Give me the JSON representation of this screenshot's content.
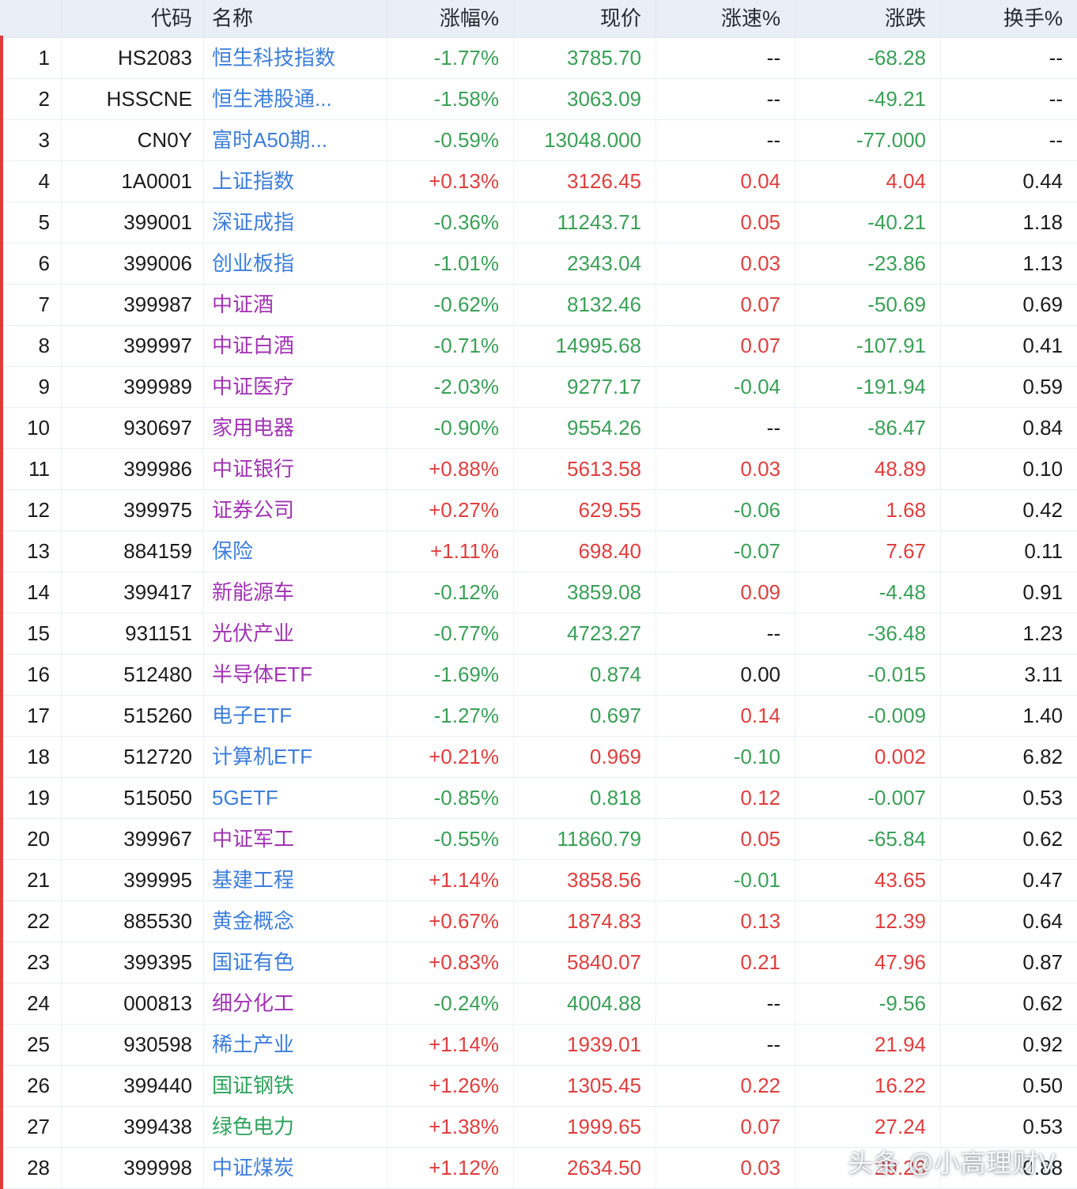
{
  "colors": {
    "up": "#e03e3e",
    "down": "#3aa057",
    "blue": "#3d7edb",
    "purple": "#a234b4",
    "green": "#2fa35c",
    "accent": "#e03c3c",
    "header_bg": "#e9eef7"
  },
  "watermark": "头条 @小高理财V",
  "table": {
    "columns": [
      {
        "key": "idx",
        "header": ""
      },
      {
        "key": "code",
        "header": "代码"
      },
      {
        "key": "name",
        "header": "名称"
      },
      {
        "key": "pct",
        "header": "涨幅%"
      },
      {
        "key": "price",
        "header": "现价"
      },
      {
        "key": "spd",
        "header": "涨速%"
      },
      {
        "key": "chg",
        "header": "涨跌"
      },
      {
        "key": "to",
        "header": "换手%"
      }
    ],
    "rows": [
      {
        "idx": "1",
        "code": "HS2083",
        "name": "恒生科技指数",
        "name_c": "blue",
        "pct": "-1.77%",
        "pct_c": "dn",
        "price": "3785.70",
        "price_c": "dn",
        "spd": "--",
        "spd_c": "flat",
        "chg": "-68.28",
        "chg_c": "dn",
        "to": "--",
        "to_c": "flat"
      },
      {
        "idx": "2",
        "code": "HSSCNE",
        "name": "恒生港股通...",
        "name_c": "blue",
        "pct": "-1.58%",
        "pct_c": "dn",
        "price": "3063.09",
        "price_c": "dn",
        "spd": "--",
        "spd_c": "flat",
        "chg": "-49.21",
        "chg_c": "dn",
        "to": "--",
        "to_c": "flat"
      },
      {
        "idx": "3",
        "code": "CN0Y",
        "name": "富时A50期...",
        "name_c": "blue",
        "pct": "-0.59%",
        "pct_c": "dn",
        "price": "13048.000",
        "price_c": "dn",
        "spd": "--",
        "spd_c": "flat",
        "chg": "-77.000",
        "chg_c": "dn",
        "to": "--",
        "to_c": "flat"
      },
      {
        "idx": "4",
        "code": "1A0001",
        "name": "上证指数",
        "name_c": "blue",
        "pct": "+0.13%",
        "pct_c": "up",
        "price": "3126.45",
        "price_c": "up",
        "spd": "0.04",
        "spd_c": "up",
        "chg": "4.04",
        "chg_c": "up",
        "to": "0.44",
        "to_c": "flat"
      },
      {
        "idx": "5",
        "code": "399001",
        "name": "深证成指",
        "name_c": "blue",
        "pct": "-0.36%",
        "pct_c": "dn",
        "price": "11243.71",
        "price_c": "dn",
        "spd": "0.05",
        "spd_c": "up",
        "chg": "-40.21",
        "chg_c": "dn",
        "to": "1.18",
        "to_c": "flat"
      },
      {
        "idx": "6",
        "code": "399006",
        "name": "创业板指",
        "name_c": "blue",
        "pct": "-1.01%",
        "pct_c": "dn",
        "price": "2343.04",
        "price_c": "dn",
        "spd": "0.03",
        "spd_c": "up",
        "chg": "-23.86",
        "chg_c": "dn",
        "to": "1.13",
        "to_c": "flat"
      },
      {
        "idx": "7",
        "code": "399987",
        "name": "中证酒",
        "name_c": "purple",
        "pct": "-0.62%",
        "pct_c": "dn",
        "price": "8132.46",
        "price_c": "dn",
        "spd": "0.07",
        "spd_c": "up",
        "chg": "-50.69",
        "chg_c": "dn",
        "to": "0.69",
        "to_c": "flat"
      },
      {
        "idx": "8",
        "code": "399997",
        "name": "中证白酒",
        "name_c": "purple",
        "pct": "-0.71%",
        "pct_c": "dn",
        "price": "14995.68",
        "price_c": "dn",
        "spd": "0.07",
        "spd_c": "up",
        "chg": "-107.91",
        "chg_c": "dn",
        "to": "0.41",
        "to_c": "flat"
      },
      {
        "idx": "9",
        "code": "399989",
        "name": "中证医疗",
        "name_c": "purple",
        "pct": "-2.03%",
        "pct_c": "dn",
        "price": "9277.17",
        "price_c": "dn",
        "spd": "-0.04",
        "spd_c": "dn",
        "chg": "-191.94",
        "chg_c": "dn",
        "to": "0.59",
        "to_c": "flat"
      },
      {
        "idx": "10",
        "code": "930697",
        "name": "家用电器",
        "name_c": "purple",
        "pct": "-0.90%",
        "pct_c": "dn",
        "price": "9554.26",
        "price_c": "dn",
        "spd": "--",
        "spd_c": "flat",
        "chg": "-86.47",
        "chg_c": "dn",
        "to": "0.84",
        "to_c": "flat"
      },
      {
        "idx": "11",
        "code": "399986",
        "name": "中证银行",
        "name_c": "purple",
        "pct": "+0.88%",
        "pct_c": "up",
        "price": "5613.58",
        "price_c": "up",
        "spd": "0.03",
        "spd_c": "up",
        "chg": "48.89",
        "chg_c": "up",
        "to": "0.10",
        "to_c": "flat"
      },
      {
        "idx": "12",
        "code": "399975",
        "name": "证券公司",
        "name_c": "purple",
        "pct": "+0.27%",
        "pct_c": "up",
        "price": "629.55",
        "price_c": "up",
        "spd": "-0.06",
        "spd_c": "dn",
        "chg": "1.68",
        "chg_c": "up",
        "to": "0.42",
        "to_c": "flat"
      },
      {
        "idx": "13",
        "code": "884159",
        "name": "保险",
        "name_c": "blue",
        "pct": "+1.11%",
        "pct_c": "up",
        "price": "698.40",
        "price_c": "up",
        "spd": "-0.07",
        "spd_c": "dn",
        "chg": "7.67",
        "chg_c": "up",
        "to": "0.11",
        "to_c": "flat"
      },
      {
        "idx": "14",
        "code": "399417",
        "name": "新能源车",
        "name_c": "purple",
        "pct": "-0.12%",
        "pct_c": "dn",
        "price": "3859.08",
        "price_c": "dn",
        "spd": "0.09",
        "spd_c": "up",
        "chg": "-4.48",
        "chg_c": "dn",
        "to": "0.91",
        "to_c": "flat"
      },
      {
        "idx": "15",
        "code": "931151",
        "name": "光伏产业",
        "name_c": "purple",
        "pct": "-0.77%",
        "pct_c": "dn",
        "price": "4723.27",
        "price_c": "dn",
        "spd": "--",
        "spd_c": "flat",
        "chg": "-36.48",
        "chg_c": "dn",
        "to": "1.23",
        "to_c": "flat"
      },
      {
        "idx": "16",
        "code": "512480",
        "name": "半导体ETF",
        "name_c": "purple",
        "pct": "-1.69%",
        "pct_c": "dn",
        "price": "0.874",
        "price_c": "dn",
        "spd": "0.00",
        "spd_c": "flat",
        "chg": "-0.015",
        "chg_c": "dn",
        "to": "3.11",
        "to_c": "flat"
      },
      {
        "idx": "17",
        "code": "515260",
        "name": "电子ETF",
        "name_c": "blue",
        "pct": "-1.27%",
        "pct_c": "dn",
        "price": "0.697",
        "price_c": "dn",
        "spd": "0.14",
        "spd_c": "up",
        "chg": "-0.009",
        "chg_c": "dn",
        "to": "1.40",
        "to_c": "flat"
      },
      {
        "idx": "18",
        "code": "512720",
        "name": "计算机ETF",
        "name_c": "blue",
        "pct": "+0.21%",
        "pct_c": "up",
        "price": "0.969",
        "price_c": "up",
        "spd": "-0.10",
        "spd_c": "dn",
        "chg": "0.002",
        "chg_c": "up",
        "to": "6.82",
        "to_c": "flat"
      },
      {
        "idx": "19",
        "code": "515050",
        "name": "5GETF",
        "name_c": "blue",
        "pct": "-0.85%",
        "pct_c": "dn",
        "price": "0.818",
        "price_c": "dn",
        "spd": "0.12",
        "spd_c": "up",
        "chg": "-0.007",
        "chg_c": "dn",
        "to": "0.53",
        "to_c": "flat"
      },
      {
        "idx": "20",
        "code": "399967",
        "name": "中证军工",
        "name_c": "purple",
        "pct": "-0.55%",
        "pct_c": "dn",
        "price": "11860.79",
        "price_c": "dn",
        "spd": "0.05",
        "spd_c": "up",
        "chg": "-65.84",
        "chg_c": "dn",
        "to": "0.62",
        "to_c": "flat"
      },
      {
        "idx": "21",
        "code": "399995",
        "name": "基建工程",
        "name_c": "blue",
        "pct": "+1.14%",
        "pct_c": "up",
        "price": "3858.56",
        "price_c": "up",
        "spd": "-0.01",
        "spd_c": "dn",
        "chg": "43.65",
        "chg_c": "up",
        "to": "0.47",
        "to_c": "flat"
      },
      {
        "idx": "22",
        "code": "885530",
        "name": "黄金概念",
        "name_c": "blue",
        "pct": "+0.67%",
        "pct_c": "up",
        "price": "1874.83",
        "price_c": "up",
        "spd": "0.13",
        "spd_c": "up",
        "chg": "12.39",
        "chg_c": "up",
        "to": "0.64",
        "to_c": "flat"
      },
      {
        "idx": "23",
        "code": "399395",
        "name": "国证有色",
        "name_c": "blue",
        "pct": "+0.83%",
        "pct_c": "up",
        "price": "5840.07",
        "price_c": "up",
        "spd": "0.21",
        "spd_c": "up",
        "chg": "47.96",
        "chg_c": "up",
        "to": "0.87",
        "to_c": "flat"
      },
      {
        "idx": "24",
        "code": "000813",
        "name": "细分化工",
        "name_c": "purple",
        "pct": "-0.24%",
        "pct_c": "dn",
        "price": "4004.88",
        "price_c": "dn",
        "spd": "--",
        "spd_c": "flat",
        "chg": "-9.56",
        "chg_c": "dn",
        "to": "0.62",
        "to_c": "flat"
      },
      {
        "idx": "25",
        "code": "930598",
        "name": "稀土产业",
        "name_c": "blue",
        "pct": "+1.14%",
        "pct_c": "up",
        "price": "1939.01",
        "price_c": "up",
        "spd": "--",
        "spd_c": "flat",
        "chg": "21.94",
        "chg_c": "up",
        "to": "0.92",
        "to_c": "flat"
      },
      {
        "idx": "26",
        "code": "399440",
        "name": "国证钢铁",
        "name_c": "green",
        "pct": "+1.26%",
        "pct_c": "up",
        "price": "1305.45",
        "price_c": "up",
        "spd": "0.22",
        "spd_c": "up",
        "chg": "16.22",
        "chg_c": "up",
        "to": "0.50",
        "to_c": "flat"
      },
      {
        "idx": "27",
        "code": "399438",
        "name": "绿色电力",
        "name_c": "green",
        "pct": "+1.38%",
        "pct_c": "up",
        "price": "1999.65",
        "price_c": "up",
        "spd": "0.07",
        "spd_c": "up",
        "chg": "27.24",
        "chg_c": "up",
        "to": "0.53",
        "to_c": "flat"
      },
      {
        "idx": "28",
        "code": "399998",
        "name": "中证煤炭",
        "name_c": "blue",
        "pct": "+1.12%",
        "pct_c": "up",
        "price": "2634.50",
        "price_c": "up",
        "spd": "0.03",
        "spd_c": "up",
        "chg": "29.26",
        "chg_c": "up",
        "to": "0.88",
        "to_c": "flat"
      }
    ]
  }
}
